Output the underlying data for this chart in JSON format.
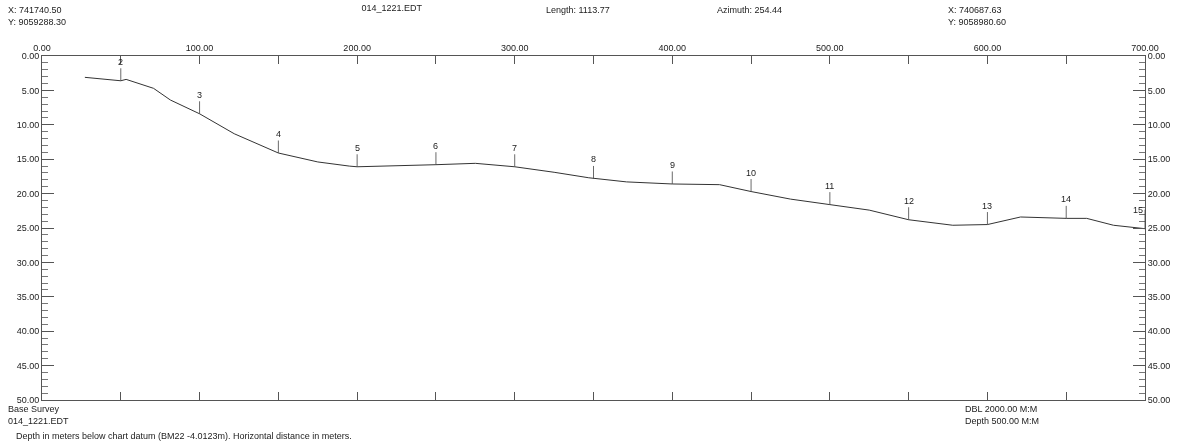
{
  "chart_data": {
    "type": "line",
    "title": "014_1221.EDT",
    "x": [
      27.2,
      50,
      53.4,
      70.8,
      81.5,
      100,
      122,
      150,
      175,
      195,
      200,
      250,
      275,
      300,
      325,
      347,
      371,
      400,
      430,
      450,
      475,
      500,
      525,
      550,
      578,
      600,
      621,
      650,
      663,
      680,
      700
    ],
    "series": [
      {
        "color": "#333333",
        "values": [
          3.1,
          3.6,
          3.4,
          4.7,
          6.4,
          8.4,
          11.3,
          14.1,
          15.4,
          16.0,
          16.1,
          15.8,
          15.6,
          16.1,
          16.9,
          17.7,
          18.3,
          18.6,
          18.7,
          19.7,
          20.8,
          21.6,
          22.4,
          23.8,
          24.6,
          24.5,
          23.4,
          23.6,
          23.6,
          24.6,
          25.1
        ]
      }
    ],
    "xlim": [
      0,
      700
    ],
    "ylim": [
      50,
      0
    ],
    "y2lim": [
      50,
      0
    ],
    "xticks": [
      {
        "value": 0,
        "label": "0.00"
      },
      {
        "value": 50,
        "label": null
      },
      {
        "value": 100,
        "label": "100.00"
      },
      {
        "value": 150,
        "label": null
      },
      {
        "value": 200,
        "label": "200.00"
      },
      {
        "value": 250,
        "label": null
      },
      {
        "value": 300,
        "label": "300.00"
      },
      {
        "value": 350,
        "label": null
      },
      {
        "value": 400,
        "label": "400.00"
      },
      {
        "value": 450,
        "label": null
      },
      {
        "value": 500,
        "label": "500.00"
      },
      {
        "value": 550,
        "label": null
      },
      {
        "value": 600,
        "label": "600.00"
      },
      {
        "value": 650,
        "label": null
      },
      {
        "value": 700,
        "label": "700.00"
      }
    ],
    "yticks": [
      {
        "value": 0,
        "label": "0.00"
      },
      {
        "value": 5,
        "label": "5.00"
      },
      {
        "value": 10,
        "label": "10.00"
      },
      {
        "value": 15,
        "label": "15.00"
      },
      {
        "value": 20,
        "label": "20.00"
      },
      {
        "value": 25,
        "label": "25.00"
      },
      {
        "value": 30,
        "label": "30.00"
      },
      {
        "value": 35,
        "label": "35.00"
      },
      {
        "value": 40,
        "label": "40.00"
      },
      {
        "value": 45,
        "label": "45.00"
      },
      {
        "value": 50,
        "label": "50.00"
      }
    ],
    "y2ticks": [
      {
        "value": 0,
        "label": "0.00"
      },
      {
        "value": 5,
        "label": "5.00"
      },
      {
        "value": 10,
        "label": "10.00"
      },
      {
        "value": 15,
        "label": "15.00"
      },
      {
        "value": 20,
        "label": "20.00"
      },
      {
        "value": 25,
        "label": "25.00"
      },
      {
        "value": 30,
        "label": "30.00"
      },
      {
        "value": 35,
        "label": "35.00"
      },
      {
        "value": 40,
        "label": "40.00"
      },
      {
        "value": 45,
        "label": "45.00"
      },
      {
        "value": 50,
        "label": "50.00"
      }
    ],
    "grid": false,
    "marker": "none",
    "line_style": "solid",
    "annotations": [
      "X: 741740.50",
      "Y: 9059288.30",
      "Length: 1113.77",
      "Azimuth: 254.44",
      "X: 740687.63",
      "Y: 9058980.60",
      "Base Survey",
      "014_1221.EDT",
      "DBL 2000.00 M:M",
      "Depth 500.00 M:M",
      "Depth in meters below chart datum (BM22 -4.0123m). Horizontal distance in meters.",
      {
        "text": "2",
        "x": 50,
        "y": 3.6
      },
      {
        "text": "3",
        "x": 100,
        "y": 8.4
      },
      {
        "text": "4",
        "x": 150,
        "y": 14.1
      },
      {
        "text": "5",
        "x": 200,
        "y": 16.1
      },
      {
        "text": "6",
        "x": 250,
        "y": 15.8
      },
      {
        "text": "7",
        "x": 300,
        "y": 16.1
      },
      {
        "text": "8",
        "x": 350,
        "y": 17.8
      },
      {
        "text": "9",
        "x": 400,
        "y": 18.6
      },
      {
        "text": "10",
        "x": 450,
        "y": 19.7
      },
      {
        "text": "11",
        "x": 500,
        "y": 21.6
      },
      {
        "text": "12",
        "x": 550,
        "y": 23.8
      },
      {
        "text": "13",
        "x": 600,
        "y": 24.5
      },
      {
        "text": "14",
        "x": 650,
        "y": 23.6
      },
      {
        "text": "15",
        "x": 700,
        "y": 25.1
      }
    ]
  }
}
